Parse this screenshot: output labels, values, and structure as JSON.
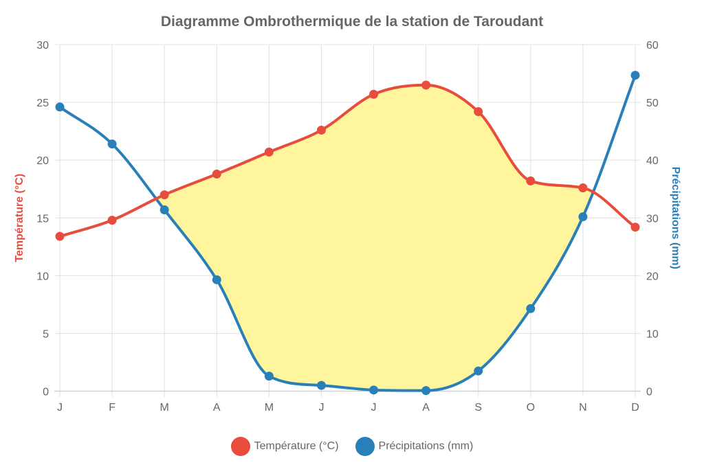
{
  "chart_data": {
    "type": "line",
    "title": "Diagramme Ombrothermique de la station de Taroudant",
    "categories": [
      "J",
      "F",
      "M",
      "A",
      "M",
      "J",
      "J",
      "A",
      "S",
      "O",
      "N",
      "D"
    ],
    "xlabel": "",
    "ylabel": "Température (°C)",
    "y2label": "Précipitations (mm)",
    "ylim": [
      0,
      30
    ],
    "y2lim": [
      0,
      60
    ],
    "yticks": [
      0,
      5,
      10,
      15,
      20,
      25,
      30
    ],
    "y2ticks": [
      0,
      10,
      20,
      30,
      40,
      50,
      60
    ],
    "grid": true,
    "legend_position": "bottom",
    "series": [
      {
        "name": "Température (°C)",
        "axis": "left",
        "color": "#e74c3c",
        "values": [
          13.4,
          14.8,
          17.0,
          18.8,
          20.7,
          22.6,
          25.7,
          26.5,
          24.2,
          18.2,
          17.6,
          14.2
        ]
      },
      {
        "name": "Précipitations (mm)",
        "axis": "right",
        "color": "#2980b9",
        "values": [
          49.2,
          42.8,
          31.4,
          19.3,
          2.6,
          1.0,
          0.2,
          0.1,
          3.5,
          14.3,
          30.2,
          54.7
        ]
      }
    ],
    "fill": {
      "description": "Dry period (area where 2T > P)",
      "color": "#fff59d"
    }
  }
}
